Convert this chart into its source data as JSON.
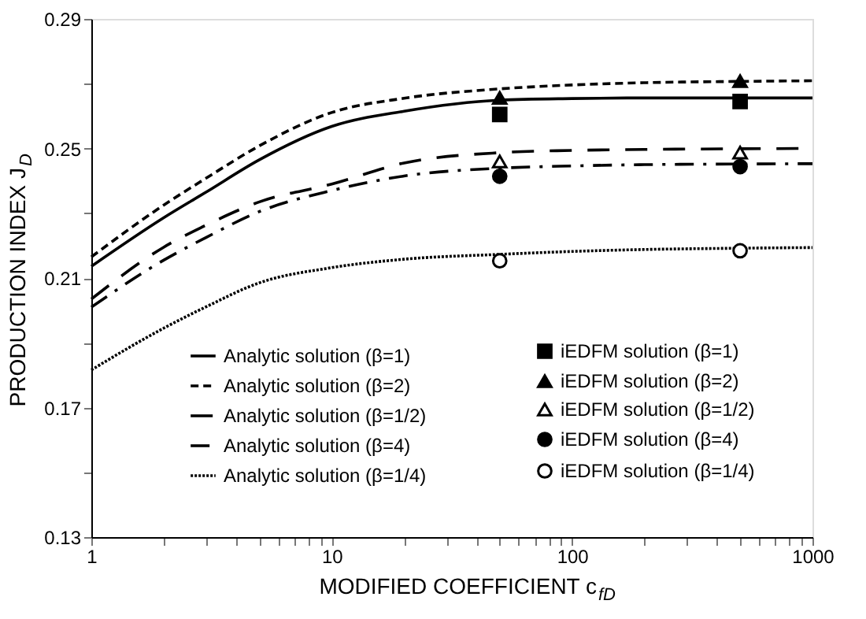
{
  "chart_data": {
    "type": "line",
    "xlabel": "MODIFIED COEFFICIENT c$_{fD}$",
    "ylabel": "PRODUCTION INDEX J$_{D}$",
    "log": "x",
    "grid": false,
    "legend": "bottom",
    "xlim": [
      1,
      1000
    ],
    "ylim": [
      0.13,
      0.29
    ],
    "xticks": [
      1,
      {
        "value": 2,
        "label": null
      },
      {
        "value": 3,
        "label": null
      },
      {
        "value": 4,
        "label": null
      },
      {
        "value": 5,
        "label": null
      },
      {
        "value": 6,
        "label": null
      },
      {
        "value": 7,
        "label": null
      },
      {
        "value": 8,
        "label": null
      },
      {
        "value": 9,
        "label": null
      },
      10,
      {
        "value": 20,
        "label": null
      },
      {
        "value": 30,
        "label": null
      },
      {
        "value": 40,
        "label": null
      },
      {
        "value": 50,
        "label": null
      },
      {
        "value": 60,
        "label": null
      },
      {
        "value": 70,
        "label": null
      },
      {
        "value": 80,
        "label": null
      },
      {
        "value": 90,
        "label": null
      },
      100,
      {
        "value": 200,
        "label": null
      },
      {
        "value": 300,
        "label": null
      },
      {
        "value": 400,
        "label": null
      },
      {
        "value": 500,
        "label": null
      },
      {
        "value": 600,
        "label": null
      },
      {
        "value": 700,
        "label": null
      },
      {
        "value": 800,
        "label": null
      },
      {
        "value": 900,
        "label": null
      },
      1000
    ],
    "yticks": [
      0.13,
      {
        "value": 0.15,
        "label": null
      },
      0.17,
      {
        "value": 0.19,
        "label": null
      },
      0.21,
      {
        "value": 0.23,
        "label": null
      },
      0.25,
      {
        "value": 0.27,
        "label": null
      },
      0.29
    ],
    "series": [
      {
        "name": "Analytic solution (β=1)",
        "line_style": "solid",
        "color": "#000000",
        "x": [
          1,
          2,
          3,
          5,
          10,
          20,
          50,
          100,
          200,
          500,
          1000
        ],
        "values": [
          0.2136,
          0.2286,
          0.2365,
          0.2465,
          0.2568,
          0.2615,
          0.2649,
          0.2654,
          0.2656,
          0.2656,
          0.2656
        ]
      },
      {
        "name": "Analytic solution (β=2)",
        "line_style": "dashed",
        "color": "#000000",
        "x": [
          1,
          2,
          3,
          5,
          10,
          20,
          50,
          100,
          200,
          500,
          1000
        ],
        "values": [
          0.2165,
          0.2325,
          0.2408,
          0.2508,
          0.2611,
          0.2655,
          0.2684,
          0.2696,
          0.2703,
          0.2707,
          0.2709
        ]
      },
      {
        "name": "Analytic solution (β=1/2)",
        "line_style": "longdash",
        "color": "#000000",
        "x": [
          1,
          2,
          3,
          5,
          10,
          20,
          50,
          100,
          200,
          500,
          1000
        ],
        "values": [
          0.2035,
          0.2195,
          0.2263,
          0.2335,
          0.239,
          0.2455,
          0.2487,
          0.2494,
          0.2497,
          0.2499,
          0.25
        ]
      },
      {
        "name": "Analytic solution (β=4)",
        "line_style": "dashdot",
        "color": "#000000",
        "x": [
          1,
          2,
          3,
          5,
          10,
          20,
          50,
          100,
          200,
          500,
          1000
        ],
        "values": [
          0.201,
          0.2155,
          0.2225,
          0.2305,
          0.237,
          0.2415,
          0.2439,
          0.2446,
          0.245,
          0.2452,
          0.2453
        ]
      },
      {
        "name": "Analytic solution (β=1/4)",
        "line_style": "dotted",
        "color": "#000000",
        "x": [
          1,
          2,
          3,
          5,
          10,
          20,
          50,
          100,
          200,
          500,
          1000
        ],
        "values": [
          0.1816,
          0.1945,
          0.2011,
          0.2085,
          0.2132,
          0.2158,
          0.2173,
          0.2182,
          0.2188,
          0.2192,
          0.2194
        ]
      },
      {
        "name": "iEDFM solution (β=1)",
        "type": "scatter",
        "marker": "square",
        "color": "#000000",
        "x": [
          50,
          500
        ],
        "values": [
          0.2605,
          0.2645
        ]
      },
      {
        "name": "iEDFM solution (β=2)",
        "type": "scatter",
        "marker": "triangle",
        "color": "#000000",
        "x": [
          50,
          500
        ],
        "values": [
          0.2656,
          0.2708
        ]
      },
      {
        "name": "iEDFM solution (β=1/2)",
        "type": "scatter",
        "marker": "triangle-open",
        "color": "#000000",
        "x": [
          50,
          500
        ],
        "values": [
          0.246,
          0.2487
        ]
      },
      {
        "name": "iEDFM solution (β=4)",
        "type": "scatter",
        "marker": "circle",
        "color": "#000000",
        "x": [
          50,
          500
        ],
        "values": [
          0.2414,
          0.2444
        ]
      },
      {
        "name": "iEDFM solution (β=1/4)",
        "type": "scatter",
        "marker": "circle-open",
        "color": "#000000",
        "x": [
          50,
          500
        ],
        "values": [
          0.2153,
          0.2184
        ]
      }
    ]
  }
}
